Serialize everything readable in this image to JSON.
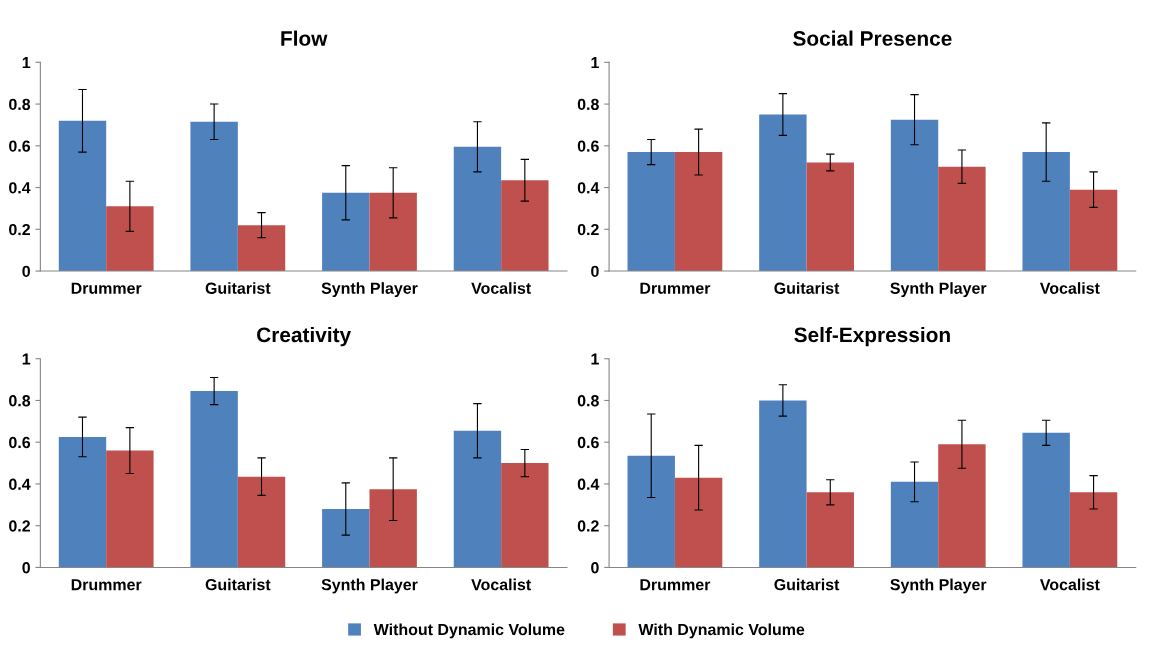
{
  "chart_data": [
    {
      "type": "bar",
      "title": "Flow",
      "categories": [
        "Drummer",
        "Guitarist",
        "Synth Player",
        "Vocalist"
      ],
      "ylim": [
        0,
        1
      ],
      "yticks": [
        0,
        0.2,
        0.4,
        0.6,
        0.8,
        1
      ],
      "grid": false,
      "legend": "bottom",
      "series": [
        {
          "name": "Without Dynamic Volume",
          "color": "#4f81bd",
          "values": [
            0.72,
            0.715,
            0.375,
            0.595
          ],
          "errors": [
            0.15,
            0.085,
            0.13,
            0.12
          ]
        },
        {
          "name": "With Dynamic Volume",
          "color": "#c0504d",
          "values": [
            0.31,
            0.22,
            0.375,
            0.435
          ],
          "errors": [
            0.12,
            0.06,
            0.12,
            0.1
          ]
        }
      ]
    },
    {
      "type": "bar",
      "title": "Social Presence",
      "categories": [
        "Drummer",
        "Guitarist",
        "Synth Player",
        "Vocalist"
      ],
      "ylim": [
        0,
        1
      ],
      "yticks": [
        0,
        0.2,
        0.4,
        0.6,
        0.8,
        1
      ],
      "grid": false,
      "legend": "bottom",
      "series": [
        {
          "name": "Without Dynamic Volume",
          "color": "#4f81bd",
          "values": [
            0.57,
            0.75,
            0.725,
            0.57
          ],
          "errors": [
            0.06,
            0.1,
            0.12,
            0.14
          ]
        },
        {
          "name": "With Dynamic Volume",
          "color": "#c0504d",
          "values": [
            0.57,
            0.52,
            0.5,
            0.39
          ],
          "errors": [
            0.11,
            0.04,
            0.08,
            0.085
          ]
        }
      ]
    },
    {
      "type": "bar",
      "title": "Creativity",
      "categories": [
        "Drummer",
        "Guitarist",
        "Synth Player",
        "Vocalist"
      ],
      "ylim": [
        0,
        1
      ],
      "yticks": [
        0,
        0.2,
        0.4,
        0.6,
        0.8,
        1
      ],
      "grid": false,
      "legend": "bottom",
      "series": [
        {
          "name": "Without Dynamic Volume",
          "color": "#4f81bd",
          "values": [
            0.625,
            0.845,
            0.28,
            0.655
          ],
          "errors": [
            0.095,
            0.065,
            0.125,
            0.13
          ]
        },
        {
          "name": "With Dynamic Volume",
          "color": "#c0504d",
          "values": [
            0.56,
            0.435,
            0.375,
            0.5
          ],
          "errors": [
            0.11,
            0.09,
            0.15,
            0.065
          ]
        }
      ]
    },
    {
      "type": "bar",
      "title": "Self-Expression",
      "categories": [
        "Drummer",
        "Guitarist",
        "Synth Player",
        "Vocalist"
      ],
      "ylim": [
        0,
        1
      ],
      "yticks": [
        0,
        0.2,
        0.4,
        0.6,
        0.8,
        1
      ],
      "grid": false,
      "legend": "bottom",
      "series": [
        {
          "name": "Without Dynamic Volume",
          "color": "#4f81bd",
          "values": [
            0.535,
            0.8,
            0.41,
            0.645
          ],
          "errors": [
            0.2,
            0.075,
            0.095,
            0.06
          ]
        },
        {
          "name": "With Dynamic Volume",
          "color": "#c0504d",
          "values": [
            0.43,
            0.36,
            0.59,
            0.36
          ],
          "errors": [
            0.155,
            0.06,
            0.115,
            0.08
          ]
        }
      ]
    }
  ]
}
